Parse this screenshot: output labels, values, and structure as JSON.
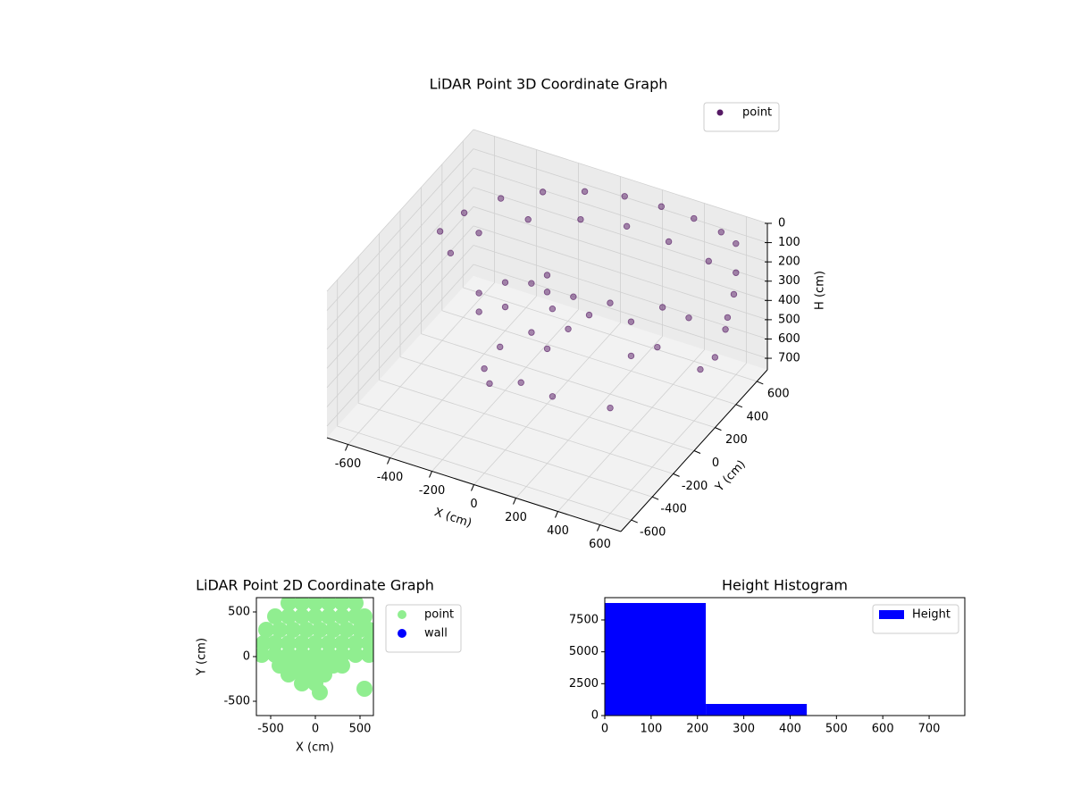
{
  "chart_data": [
    {
      "type": "scatter3d",
      "title": "LiDAR Point 3D Coordinate Graph",
      "xlabel": "X (cm)",
      "ylabel": "Y (cm)",
      "zlabel": "H (cm)",
      "xlim": [
        -700,
        700
      ],
      "ylim": [
        -700,
        700
      ],
      "zlim": [
        0,
        760
      ],
      "z_inverted": true,
      "xticks": [
        -600,
        -400,
        -200,
        0,
        200,
        400,
        600
      ],
      "yticks": [
        -600,
        -400,
        -200,
        0,
        200,
        400,
        600
      ],
      "zticks": [
        0,
        100,
        200,
        300,
        400,
        500,
        600,
        700
      ],
      "grid": true,
      "legend": "upper right",
      "series": [
        {
          "name": "point",
          "color": "#440154",
          "x": [
            -560,
            -520,
            -420,
            -280,
            -120,
            50,
            220,
            380,
            520,
            600,
            -500,
            -450,
            -300,
            -100,
            100,
            300,
            500,
            620,
            620,
            610,
            610,
            600,
            580,
            400,
            300,
            450,
            350,
            500,
            -200,
            -150,
            -100,
            0,
            50,
            100,
            -250,
            0,
            150,
            -50,
            200,
            250,
            -300,
            100,
            -100,
            -150,
            -100,
            0,
            150,
            350
          ],
          "y": [
            100,
            250,
            400,
            520,
            600,
            640,
            650,
            640,
            620,
            600,
            80,
            250,
            420,
            520,
            560,
            560,
            540,
            560,
            540,
            500,
            480,
            400,
            300,
            300,
            200,
            150,
            100,
            350,
            0,
            -100,
            50,
            0,
            -50,
            50,
            -150,
            -150,
            -100,
            100,
            0,
            100,
            -50,
            -200,
            -250,
            -300,
            -350,
            -250,
            -250,
            -100
          ],
          "z": [
            120,
            100,
            80,
            70,
            60,
            50,
            50,
            50,
            60,
            80,
            200,
            180,
            160,
            150,
            140,
            150,
            170,
            200,
            300,
            400,
            450,
            550,
            560,
            300,
            350,
            400,
            450,
            350,
            200,
            250,
            200,
            180,
            220,
            200,
            280,
            300,
            260,
            170,
            230,
            210,
            260,
            320,
            350,
            450,
            480,
            500,
            520,
            600
          ]
        }
      ]
    },
    {
      "type": "scatter",
      "title": "LiDAR Point 2D Coordinate Graph",
      "xlabel": "X (cm)",
      "ylabel": "Y (cm)",
      "xlim": [
        -660,
        650
      ],
      "ylim": [
        -660,
        660
      ],
      "xticks": [
        -500,
        0,
        500
      ],
      "yticks": [
        -500,
        0,
        500
      ],
      "grid": false,
      "legend": "outside right",
      "series": [
        {
          "name": "point",
          "color": "#90ee90",
          "x": [
            -300,
            -150,
            0,
            150,
            300,
            450,
            -450,
            -300,
            -150,
            0,
            150,
            300,
            450,
            550,
            -550,
            -400,
            -250,
            -100,
            50,
            200,
            350,
            500,
            600,
            -580,
            -450,
            -300,
            -150,
            0,
            150,
            300,
            450,
            600,
            -600,
            -450,
            -300,
            -150,
            0,
            150,
            300,
            450,
            600,
            -400,
            -250,
            -100,
            50,
            200,
            300,
            -300,
            -150,
            0,
            100,
            -150,
            0,
            50,
            550
          ],
          "y": [
            600,
            600,
            600,
            600,
            600,
            600,
            450,
            450,
            450,
            450,
            450,
            450,
            450,
            450,
            300,
            300,
            300,
            300,
            300,
            300,
            300,
            300,
            300,
            150,
            150,
            150,
            150,
            150,
            150,
            150,
            150,
            150,
            20,
            20,
            20,
            20,
            20,
            20,
            20,
            20,
            20,
            -100,
            -100,
            -100,
            -100,
            -100,
            -100,
            -200,
            -200,
            -200,
            -200,
            -300,
            -300,
            -400,
            -360
          ]
        },
        {
          "name": "wall",
          "color": "#0000ff",
          "x": [],
          "y": []
        }
      ]
    },
    {
      "type": "histogram",
      "title": "Height Histogram",
      "xlim": [
        0,
        777
      ],
      "ylim": [
        0,
        9250
      ],
      "xticks": [
        0,
        100,
        200,
        300,
        400,
        500,
        600,
        700
      ],
      "yticks": [
        0,
        2500,
        5000,
        7500
      ],
      "grid": false,
      "legend": "upper right",
      "bins": [
        0,
        218,
        436,
        654
      ],
      "series": [
        {
          "name": "Height",
          "color": "#0000ff",
          "values": [
            8830,
            911,
            6
          ]
        }
      ]
    }
  ]
}
